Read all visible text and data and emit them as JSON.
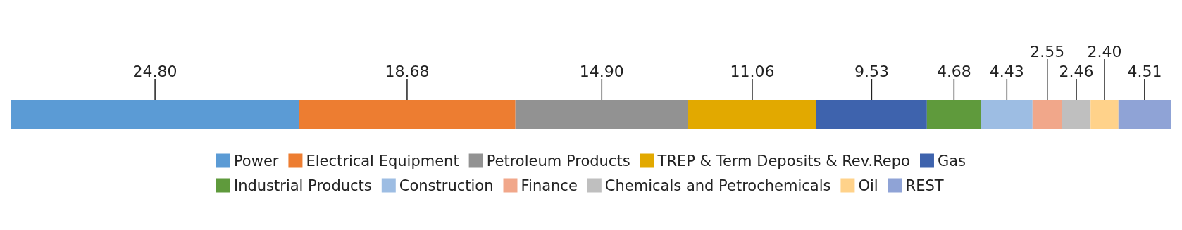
{
  "chart_data": {
    "type": "bar",
    "orientation": "horizontal",
    "stacked": true,
    "categories": [
      null
    ],
    "legend": "bottom",
    "series": [
      {
        "name": "Power",
        "color": "#5b9bd5",
        "values": [
          24.8
        ],
        "value_labels": [
          "24.80"
        ]
      },
      {
        "name": "Electrical Equipment",
        "color": "#ed7d31",
        "values": [
          18.68
        ],
        "value_labels": [
          "18.68"
        ]
      },
      {
        "name": "Petroleum Products",
        "color": "#929292",
        "values": [
          14.9
        ],
        "value_labels": [
          "14.90"
        ]
      },
      {
        "name": "TREP & Term Deposits & Rev.Repo",
        "color": "#e2a900",
        "values": [
          11.06
        ],
        "value_labels": [
          "11.06"
        ]
      },
      {
        "name": "Gas",
        "color": "#3e63ad",
        "values": [
          9.53
        ],
        "value_labels": [
          "9.53"
        ]
      },
      {
        "name": "Industrial Products",
        "color": "#5f9a3c",
        "values": [
          4.68
        ],
        "value_labels": [
          "4.68"
        ]
      },
      {
        "name": "Construction",
        "color": "#9dbde3",
        "values": [
          4.43
        ],
        "value_labels": [
          "4.43"
        ]
      },
      {
        "name": "Finance",
        "color": "#f1a78a",
        "values": [
          2.55
        ],
        "value_labels": [
          "2.55"
        ]
      },
      {
        "name": "Chemicals and Petrochemicals",
        "color": "#bfbfbf",
        "values": [
          2.46
        ],
        "value_labels": [
          "2.46"
        ]
      },
      {
        "name": "Oil",
        "color": "#ffd28a",
        "values": [
          2.4
        ],
        "value_labels": [
          "2.40"
        ]
      },
      {
        "name": "REST",
        "color": "#8fa3d6",
        "values": [
          4.51
        ],
        "value_labels": [
          "4.51"
        ]
      }
    ]
  }
}
